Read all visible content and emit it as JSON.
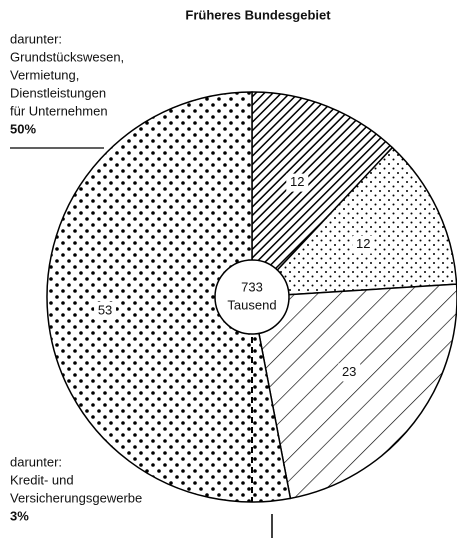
{
  "chart_data": {
    "type": "pie",
    "title": "Früheres Bundesgebiet",
    "values": [
      12,
      12,
      23,
      53
    ],
    "total": 733,
    "total_unit": "Tausend",
    "annotations": [
      {
        "lines": [
          "darunter:",
          "Grundstückswesen,",
          "Vermietung,",
          "Dienstleistungen",
          "für Unternehmen"
        ],
        "value": 50,
        "value_label": "50%"
      },
      {
        "lines": [
          "darunter:",
          "Kredit- und",
          "Versicherungsgewerbe"
        ],
        "value": 3,
        "value_label": "3%"
      }
    ]
  }
}
